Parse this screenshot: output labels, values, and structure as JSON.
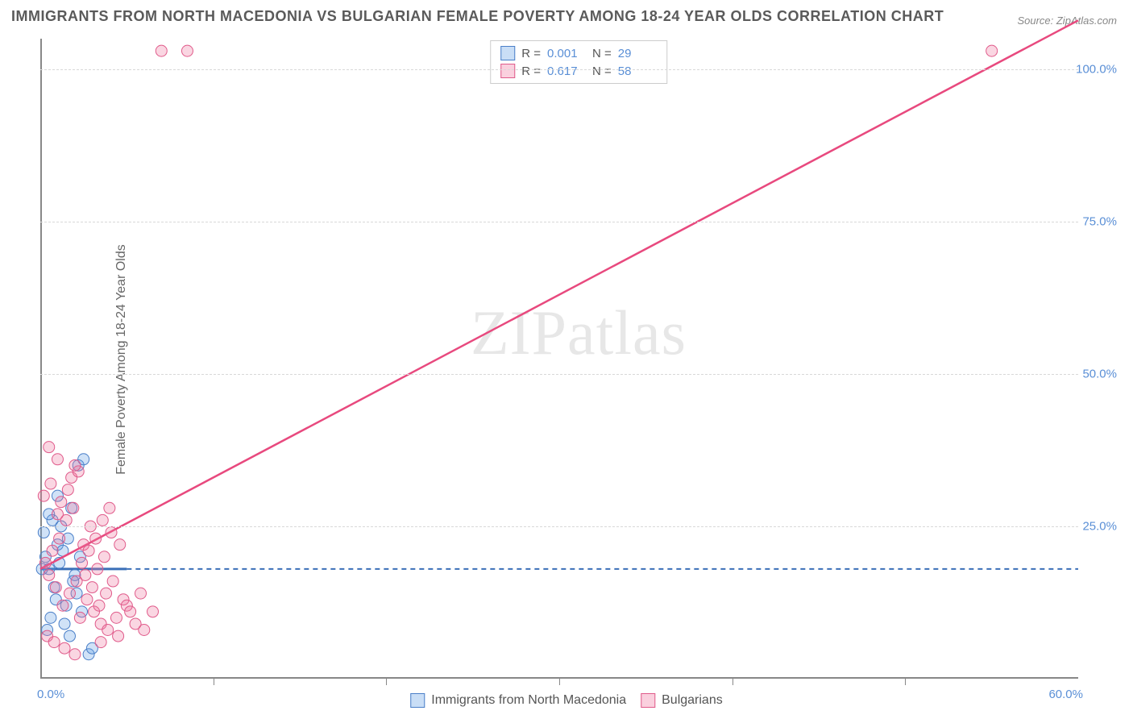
{
  "title": "IMMIGRANTS FROM NORTH MACEDONIA VS BULGARIAN FEMALE POVERTY AMONG 18-24 YEAR OLDS CORRELATION CHART",
  "source": "Source: ZipAtlas.com",
  "y_axis_label": "Female Poverty Among 18-24 Year Olds",
  "watermark": "ZIPatlas",
  "chart": {
    "type": "scatter",
    "xlim": [
      0,
      60
    ],
    "ylim": [
      0,
      105
    ],
    "x_ticks": [
      0,
      60
    ],
    "x_tick_labels": [
      "0.0%",
      "60.0%"
    ],
    "y_ticks": [
      25,
      50,
      75,
      100
    ],
    "y_tick_labels": [
      "25.0%",
      "50.0%",
      "75.0%",
      "100.0%"
    ],
    "x_minor_ticks": [
      10,
      20,
      30,
      40,
      50
    ],
    "background_color": "#ffffff",
    "grid_color": "#d8d8d8",
    "axis_color": "#888888",
    "series": [
      {
        "name": "Immigrants from North Macedonia",
        "color_fill": "rgba(100,160,230,0.30)",
        "color_stroke": "#4a7fc8",
        "marker_radius": 7,
        "r_value": "0.001",
        "n_value": "29",
        "regression": {
          "type": "line",
          "y_at_x0": 18,
          "y_at_xmax": 18,
          "solid_until_x": 5,
          "dash": true,
          "color": "#3a6fb8",
          "width": 2
        },
        "points": [
          [
            0.3,
            20
          ],
          [
            0.5,
            18
          ],
          [
            0.8,
            15
          ],
          [
            1.0,
            22
          ],
          [
            1.2,
            25
          ],
          [
            1.5,
            12
          ],
          [
            1.8,
            28
          ],
          [
            2.0,
            17
          ],
          [
            2.2,
            35
          ],
          [
            2.5,
            36
          ],
          [
            0.4,
            8
          ],
          [
            0.6,
            10
          ],
          [
            0.9,
            13
          ],
          [
            1.1,
            19
          ],
          [
            1.3,
            21
          ],
          [
            1.6,
            23
          ],
          [
            1.9,
            16
          ],
          [
            2.1,
            14
          ],
          [
            2.4,
            11
          ],
          [
            0.2,
            24
          ],
          [
            0.7,
            26
          ],
          [
            1.4,
            9
          ],
          [
            1.7,
            7
          ],
          [
            2.3,
            20
          ],
          [
            0.1,
            18
          ],
          [
            2.8,
            4
          ],
          [
            3.0,
            5
          ],
          [
            1.0,
            30
          ],
          [
            0.5,
            27
          ]
        ]
      },
      {
        "name": "Bulgarians",
        "color_fill": "rgba(240,120,160,0.30)",
        "color_stroke": "#e05a8a",
        "marker_radius": 7,
        "r_value": "0.617",
        "n_value": "58",
        "regression": {
          "type": "line",
          "y_at_x0": 18,
          "y_at_xmax": 108,
          "dash": false,
          "color": "#e8497e",
          "width": 2.5
        },
        "points": [
          [
            0.3,
            19
          ],
          [
            0.5,
            17
          ],
          [
            0.7,
            21
          ],
          [
            0.9,
            15
          ],
          [
            1.1,
            23
          ],
          [
            1.3,
            12
          ],
          [
            1.5,
            26
          ],
          [
            1.7,
            14
          ],
          [
            1.9,
            28
          ],
          [
            2.1,
            16
          ],
          [
            2.3,
            10
          ],
          [
            2.5,
            22
          ],
          [
            2.7,
            13
          ],
          [
            2.9,
            25
          ],
          [
            3.1,
            11
          ],
          [
            3.3,
            18
          ],
          [
            3.5,
            9
          ],
          [
            3.7,
            20
          ],
          [
            3.9,
            8
          ],
          [
            4.1,
            24
          ],
          [
            0.2,
            30
          ],
          [
            0.4,
            7
          ],
          [
            0.6,
            32
          ],
          [
            0.8,
            6
          ],
          [
            1.0,
            27
          ],
          [
            1.2,
            29
          ],
          [
            1.4,
            5
          ],
          [
            1.6,
            31
          ],
          [
            1.8,
            33
          ],
          [
            2.0,
            4
          ],
          [
            2.2,
            34
          ],
          [
            2.4,
            19
          ],
          [
            2.6,
            17
          ],
          [
            2.8,
            21
          ],
          [
            3.0,
            15
          ],
          [
            3.2,
            23
          ],
          [
            3.4,
            12
          ],
          [
            3.6,
            26
          ],
          [
            3.8,
            14
          ],
          [
            4.0,
            28
          ],
          [
            4.2,
            16
          ],
          [
            4.4,
            10
          ],
          [
            4.6,
            22
          ],
          [
            4.8,
            13
          ],
          [
            5.0,
            12
          ],
          [
            5.2,
            11
          ],
          [
            5.5,
            9
          ],
          [
            6.0,
            8
          ],
          [
            7.0,
            103
          ],
          [
            8.5,
            103
          ],
          [
            55.0,
            103
          ],
          [
            1.0,
            36
          ],
          [
            0.5,
            38
          ],
          [
            2.0,
            35
          ],
          [
            3.5,
            6
          ],
          [
            4.5,
            7
          ],
          [
            5.8,
            14
          ],
          [
            6.5,
            11
          ]
        ]
      }
    ]
  },
  "legend_top": {
    "r_label": "R =",
    "n_label": "N ="
  },
  "legend_bottom": {
    "items": [
      "Immigrants from North Macedonia",
      "Bulgarians"
    ]
  }
}
